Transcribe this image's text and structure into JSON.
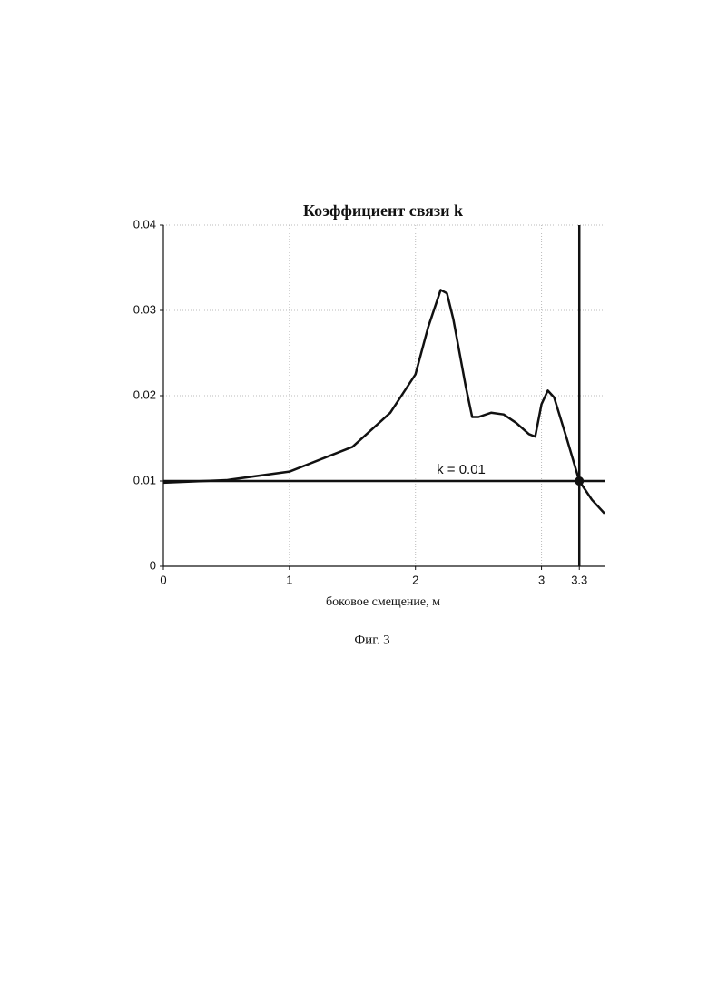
{
  "chart_data": {
    "type": "line",
    "title": "Коэффициент связи k",
    "x_label": "боковое смещение, м",
    "x": [
      0,
      0.5,
      1.0,
      1.5,
      1.8,
      2.0,
      2.1,
      2.2,
      2.25,
      2.3,
      2.4,
      2.45,
      2.5,
      2.6,
      2.7,
      2.8,
      2.9,
      2.95,
      3.0,
      3.05,
      3.1,
      3.2,
      3.3,
      3.4,
      3.5
    ],
    "series": [
      {
        "name": "k",
        "color": "#111111",
        "values": [
          0.0098,
          0.0101,
          0.0111,
          0.014,
          0.018,
          0.0225,
          0.028,
          0.0324,
          0.032,
          0.029,
          0.021,
          0.0175,
          0.0175,
          0.018,
          0.0178,
          0.0168,
          0.0155,
          0.0152,
          0.019,
          0.0206,
          0.0198,
          0.015,
          0.01,
          0.0078,
          0.0062
        ]
      }
    ],
    "xlim": [
      0,
      3.5
    ],
    "ylim": [
      0,
      0.04
    ],
    "xticks": [
      0,
      1,
      2,
      3,
      3.3
    ],
    "yticks": [
      0,
      0.01,
      0.02,
      0.03,
      0.04
    ],
    "grid": true,
    "hline": {
      "value": 0.01,
      "label": "k = 0.01"
    },
    "vline": 3.3
  },
  "caption": "Фиг. 3"
}
